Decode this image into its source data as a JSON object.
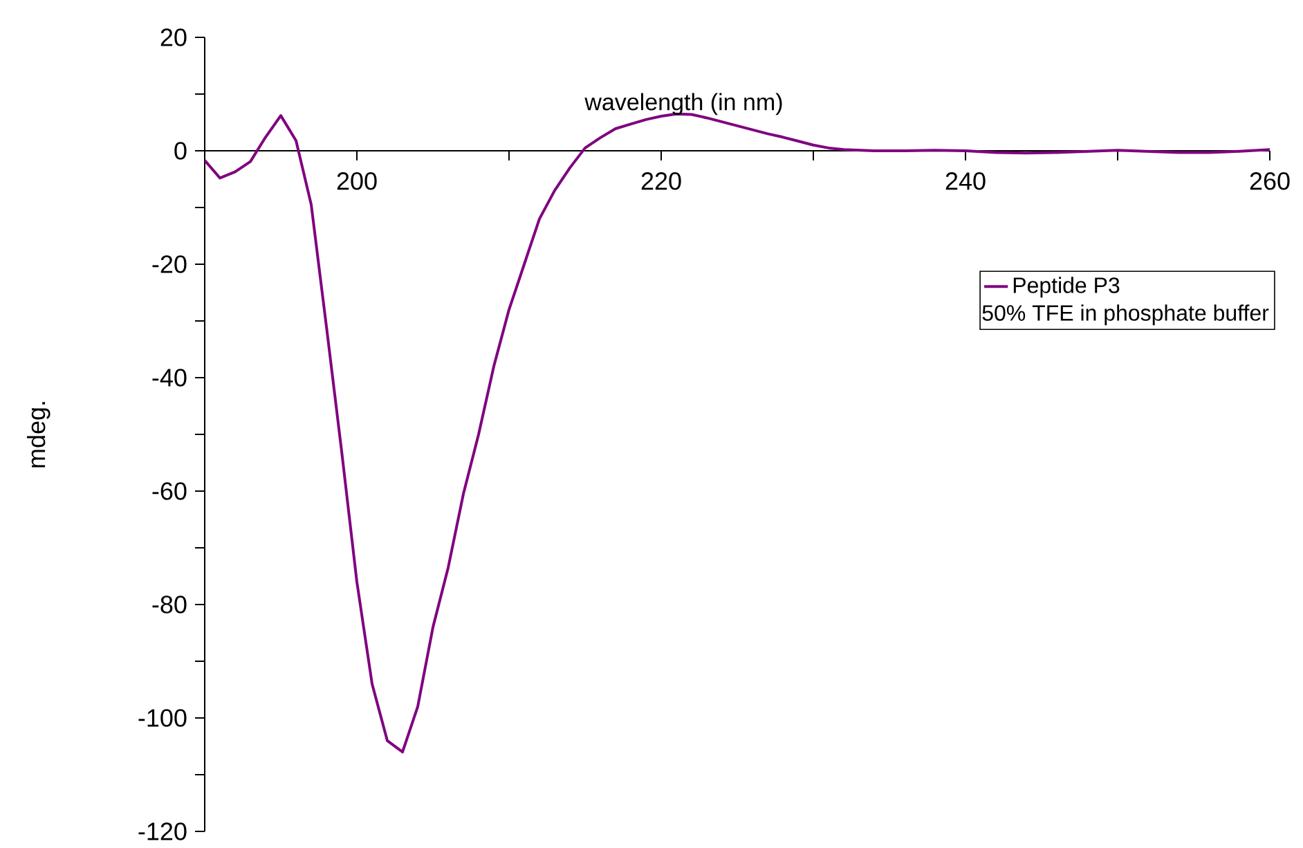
{
  "chart_data": {
    "type": "line",
    "xlabel": "wavelength (in nm)",
    "ylabel": "mdeg.",
    "annotations": [
      "50% TFE in phosphate buffer"
    ],
    "xlim": [
      190,
      260
    ],
    "ylim": [
      -120,
      20
    ],
    "xticks": [
      200,
      {
        "value": 210,
        "label": null
      },
      220,
      {
        "value": 230,
        "label": null
      },
      240,
      {
        "value": 250,
        "label": null
      },
      260
    ],
    "yticks": [
      -120,
      {
        "value": -110,
        "label": null
      },
      -100,
      {
        "value": -90,
        "label": null
      },
      -80,
      {
        "value": -70,
        "label": null
      },
      -60,
      {
        "value": -50,
        "label": null
      },
      -40,
      {
        "value": -30,
        "label": null
      },
      -20,
      {
        "value": -10,
        "label": null
      },
      0,
      {
        "value": 10,
        "label": null
      },
      20
    ],
    "legend": "right",
    "grid": false,
    "marker": "none",
    "line_style": "solid",
    "series": [
      {
        "name": "Peptide P3",
        "color": "#800080",
        "x": [
          190,
          191,
          192,
          193,
          194,
          195,
          196,
          197,
          198,
          199,
          200,
          201,
          202,
          203,
          204,
          205,
          206,
          207,
          208,
          209,
          210,
          211,
          212,
          213,
          214,
          215,
          216,
          217,
          218,
          219,
          220,
          221,
          222,
          223,
          224,
          225,
          226,
          227,
          228,
          229,
          230,
          231,
          232,
          234,
          236,
          238,
          240,
          242,
          244,
          246,
          248,
          250,
          252,
          254,
          256,
          258,
          260
        ],
        "values": [
          -1.7,
          -4.8,
          -3.7,
          -1.9,
          2.4,
          6.2,
          1.8,
          -9.5,
          -31,
          -53,
          -76,
          -94,
          -104,
          -106,
          -98,
          -84,
          -73.5,
          -60.5,
          -50,
          -38,
          -28,
          -20,
          -12,
          -7,
          -3,
          0.5,
          2.3,
          3.9,
          4.7,
          5.5,
          6.1,
          6.5,
          6.4,
          5.8,
          5.1,
          4.4,
          3.7,
          3,
          2.4,
          1.7,
          1,
          0.5,
          0.2,
          0,
          0,
          0.1,
          0,
          -0.3,
          -0.4,
          -0.3,
          -0.1,
          0.1,
          -0.1,
          -0.3,
          -0.3,
          -0.1,
          0.2
        ]
      }
    ]
  }
}
